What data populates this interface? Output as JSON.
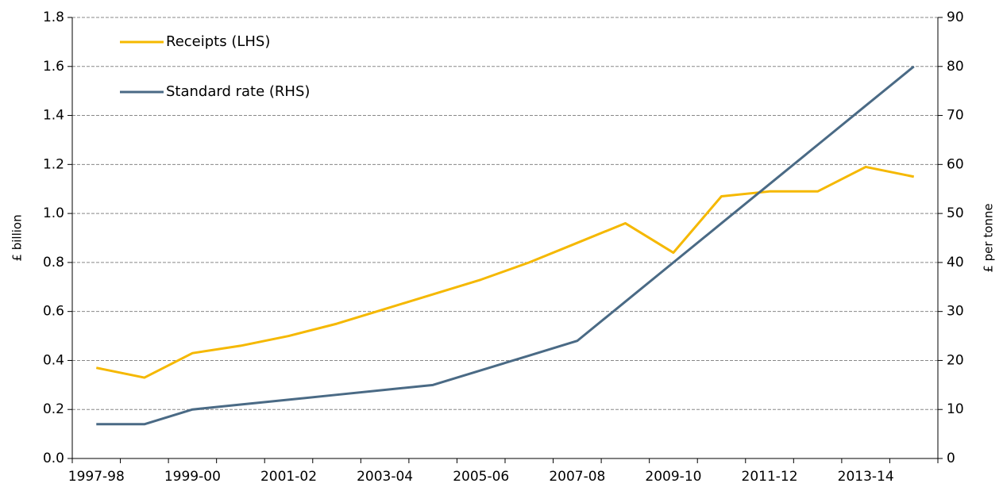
{
  "chart_data": {
    "type": "line",
    "ylabel": "£ billion",
    "y2label": "£ per tonne",
    "categories": [
      "1997-98",
      null,
      "1999-00",
      null,
      "2001-02",
      null,
      "2003-04",
      null,
      "2005-06",
      null,
      "2007-08",
      null,
      "2009-10",
      null,
      "2011-12",
      null,
      "2013-14",
      null
    ],
    "series": [
      {
        "name": "Receipts (LHS)",
        "color": "#f5b800",
        "axis": "y",
        "values": [
          0.37,
          0.33,
          0.43,
          0.46,
          0.5,
          0.55,
          0.61,
          0.67,
          0.73,
          0.8,
          0.88,
          0.96,
          0.84,
          1.07,
          1.09,
          1.09,
          1.19,
          1.15
        ]
      },
      {
        "name": "Standard rate (RHS)",
        "color": "#4a6a85",
        "axis": "y2",
        "values": [
          7,
          7,
          10,
          11,
          12,
          13,
          14,
          15,
          18,
          21,
          24,
          32,
          40,
          48,
          56,
          64,
          72,
          80
        ]
      }
    ],
    "ylim": [
      0,
      1.8
    ],
    "yticks": [
      {
        "value": 0,
        "label": "0.0"
      },
      0.2,
      0.4,
      0.6,
      0.8,
      {
        "value": 1,
        "label": "1.0"
      },
      1.2,
      1.4,
      1.6,
      1.8
    ],
    "y2lim": [
      0,
      90
    ],
    "y2ticks": [
      0,
      10,
      20,
      30,
      40,
      50,
      60,
      70,
      80,
      90
    ],
    "grid": true,
    "legend": "top-left"
  }
}
